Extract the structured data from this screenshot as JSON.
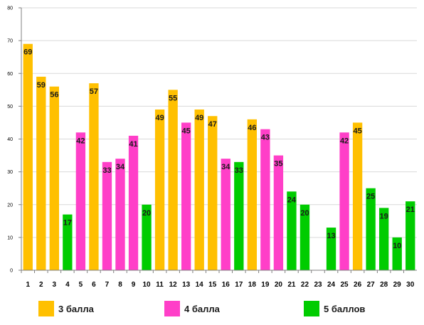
{
  "colors": {
    "grade3": "#FFC000",
    "grade4": "#FF3FC8",
    "grade5": "#00CC00",
    "grid": "#d9d9d9",
    "axis": "#808080"
  },
  "legend": [
    {
      "name": "3 балла",
      "color_key": "grade3"
    },
    {
      "name": "4 балла",
      "color_key": "grade4"
    },
    {
      "name": "5 баллов",
      "color_key": "grade5"
    }
  ],
  "chart_data": {
    "type": "bar",
    "title": "",
    "xlabel": "",
    "ylabel": "",
    "ylim": [
      0,
      80
    ],
    "yticks": [
      0,
      10,
      20,
      30,
      40,
      50,
      60,
      70,
      80
    ],
    "grid": true,
    "legend_position": "bottom",
    "categories": [
      "1",
      "2",
      "3",
      "4",
      "5",
      "6",
      "7",
      "8",
      "9",
      "10",
      "11",
      "12",
      "13",
      "14",
      "15",
      "16",
      "17",
      "18",
      "19",
      "20",
      "21",
      "22",
      "23",
      "24",
      "25",
      "26",
      "27",
      "28",
      "29",
      "30"
    ],
    "values": [
      69,
      59,
      56,
      17,
      42,
      57,
      33,
      34,
      41,
      20,
      49,
      55,
      45,
      49,
      47,
      34,
      33,
      46,
      43,
      35,
      24,
      20,
      null,
      13,
      42,
      45,
      25,
      19,
      10,
      21
    ],
    "series_index": [
      0,
      0,
      0,
      2,
      1,
      0,
      1,
      1,
      1,
      2,
      0,
      0,
      1,
      0,
      0,
      1,
      2,
      0,
      1,
      1,
      2,
      2,
      null,
      2,
      1,
      0,
      2,
      2,
      2,
      2
    ],
    "series": [
      {
        "name": "3 балла"
      },
      {
        "name": "4 балла"
      },
      {
        "name": "5 баллов"
      }
    ]
  }
}
